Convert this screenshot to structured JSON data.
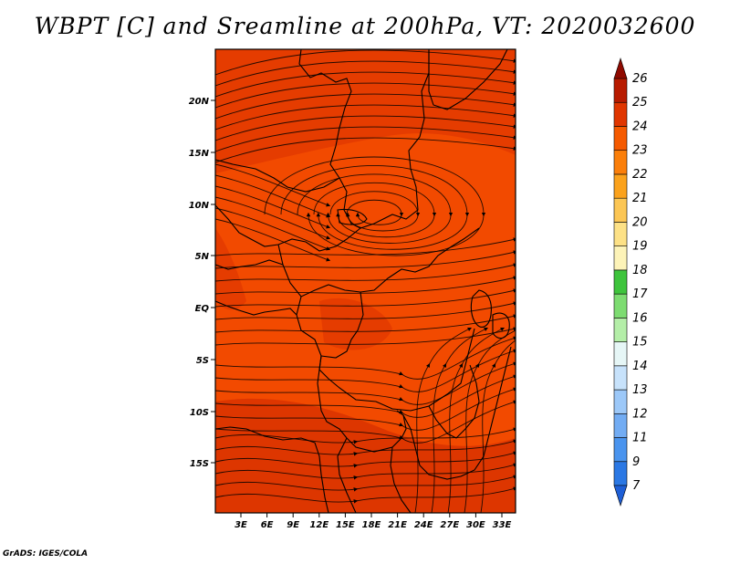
{
  "title": "WBPT [C] and Sreamline at 200hPa, VT: 2020032600",
  "credit": "GrADS: IGES/COLA",
  "map": {
    "lat_labels": [
      "20N",
      "15N",
      "10N",
      "5N",
      "EQ",
      "5S",
      "10S",
      "15S"
    ],
    "lon_labels": [
      "3E",
      "6E",
      "9E",
      "12E",
      "15E",
      "18E",
      "21E",
      "24E",
      "27E",
      "30E",
      "33E"
    ]
  },
  "colorbar": {
    "labels": [
      "7",
      "9",
      "11",
      "12",
      "13",
      "14",
      "15",
      "16",
      "17",
      "18",
      "19",
      "20",
      "21",
      "22",
      "23",
      "24",
      "25",
      "26"
    ],
    "colors": [
      "#1e5fd6",
      "#2b78e4",
      "#4a94ee",
      "#72acf3",
      "#9cc8f8",
      "#c7e2fb",
      "#e6f6f6",
      "#b4eea8",
      "#7ddc71",
      "#3ec43c",
      "#fdf3b8",
      "#fde186",
      "#fcc654",
      "#fba21c",
      "#fb7f0a",
      "#f55a00",
      "#e03600",
      "#b81b00",
      "#8f0a00"
    ],
    "field_colors": {
      "base": "#f24a00",
      "warm": "#e03600",
      "hot": "#d42e00"
    }
  }
}
